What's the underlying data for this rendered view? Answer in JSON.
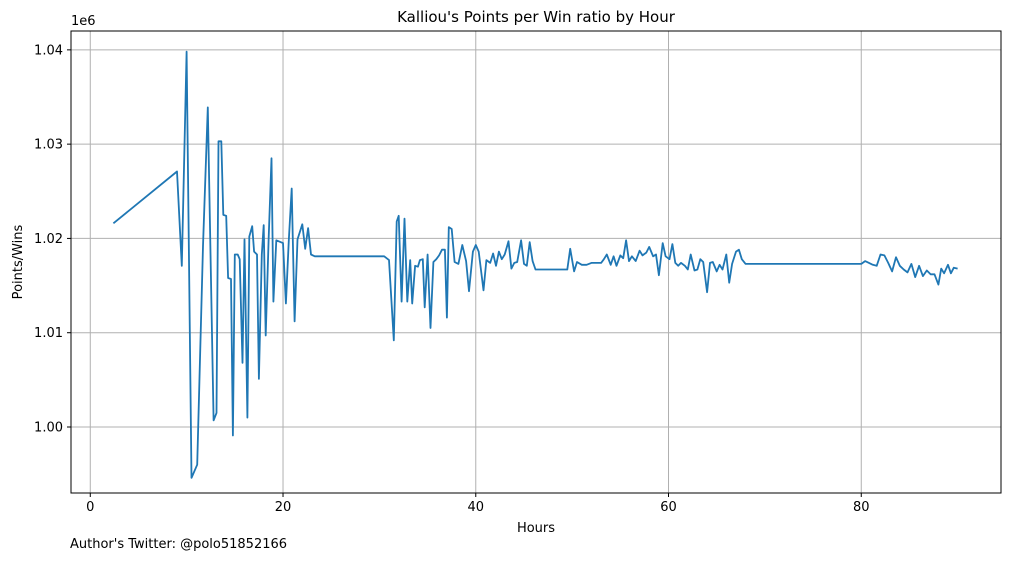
{
  "footer": {
    "note": "Author's Twitter: @polo51852166"
  },
  "colors": {
    "series": "#1f77b4",
    "grid": "#b0b0b0",
    "axis": "#000000"
  },
  "chart_data": {
    "type": "line",
    "title": "Kalliou's Points per Win ratio by Hour",
    "xlabel": "Hours",
    "ylabel": "Points/Wins",
    "y_multiplier_label": "1e6",
    "xlim": [
      -2,
      94.5
    ],
    "ylim": [
      0.993,
      1.042
    ],
    "xticks": [
      0,
      20,
      40,
      60,
      80
    ],
    "yticks": [
      1.0,
      1.01,
      1.02,
      1.03,
      1.04
    ],
    "ytick_labels": [
      "1.00",
      "1.01",
      "1.02",
      "1.03",
      "1.04"
    ],
    "grid": true,
    "series": [
      {
        "points": [
          [
            2.4,
            1.0216
          ],
          [
            9.0,
            1.0271
          ],
          [
            9.5,
            1.0171
          ],
          [
            10.0,
            1.0398
          ],
          [
            10.5,
            0.9946
          ],
          [
            11.1,
            0.996
          ],
          [
            11.7,
            1.0192
          ],
          [
            12.2,
            1.0339
          ],
          [
            12.8,
            1.0007
          ],
          [
            13.1,
            1.0015
          ],
          [
            13.3,
            1.0303
          ],
          [
            13.6,
            1.0303
          ],
          [
            13.8,
            1.0225
          ],
          [
            14.1,
            1.0224
          ],
          [
            14.3,
            1.0158
          ],
          [
            14.6,
            1.0157
          ],
          [
            14.8,
            0.9991
          ],
          [
            15.0,
            1.0183
          ],
          [
            15.3,
            1.0183
          ],
          [
            15.5,
            1.0178
          ],
          [
            15.8,
            1.0068
          ],
          [
            16.0,
            1.0199
          ],
          [
            16.3,
            1.001
          ],
          [
            16.5,
            1.0202
          ],
          [
            16.8,
            1.0213
          ],
          [
            17.0,
            1.0186
          ],
          [
            17.3,
            1.0183
          ],
          [
            17.5,
            1.0051
          ],
          [
            17.8,
            1.0183
          ],
          [
            18.0,
            1.0214
          ],
          [
            18.2,
            1.0097
          ],
          [
            18.5,
            1.0198
          ],
          [
            18.8,
            1.0285
          ],
          [
            19.0,
            1.0133
          ],
          [
            19.3,
            1.0198
          ],
          [
            20.0,
            1.0195
          ],
          [
            20.3,
            1.0131
          ],
          [
            20.6,
            1.0198
          ],
          [
            20.9,
            1.0253
          ],
          [
            21.2,
            1.0112
          ],
          [
            21.5,
            1.0199
          ],
          [
            22.0,
            1.0215
          ],
          [
            22.3,
            1.0189
          ],
          [
            22.6,
            1.0211
          ],
          [
            22.9,
            1.0183
          ],
          [
            23.3,
            1.0181
          ],
          [
            30.5,
            1.0181
          ],
          [
            31.0,
            1.0177
          ],
          [
            31.5,
            1.0092
          ],
          [
            31.8,
            1.0218
          ],
          [
            32.0,
            1.0224
          ],
          [
            32.3,
            1.0133
          ],
          [
            32.6,
            1.0221
          ],
          [
            32.9,
            1.0133
          ],
          [
            33.2,
            1.0177
          ],
          [
            33.4,
            1.0131
          ],
          [
            33.7,
            1.0171
          ],
          [
            34.0,
            1.017
          ],
          [
            34.2,
            1.0177
          ],
          [
            34.5,
            1.0178
          ],
          [
            34.7,
            1.0127
          ],
          [
            35.0,
            1.0183
          ],
          [
            35.3,
            1.0105
          ],
          [
            35.6,
            1.0175
          ],
          [
            35.9,
            1.0178
          ],
          [
            36.2,
            1.0182
          ],
          [
            36.5,
            1.0188
          ],
          [
            36.8,
            1.0188
          ],
          [
            37.0,
            1.0116
          ],
          [
            37.2,
            1.0212
          ],
          [
            37.5,
            1.021
          ],
          [
            37.8,
            1.0175
          ],
          [
            38.2,
            1.0173
          ],
          [
            38.6,
            1.0193
          ],
          [
            39.0,
            1.0176
          ],
          [
            39.3,
            1.0144
          ],
          [
            39.7,
            1.0186
          ],
          [
            40.0,
            1.0193
          ],
          [
            40.3,
            1.0186
          ],
          [
            40.8,
            1.0145
          ],
          [
            41.1,
            1.0177
          ],
          [
            41.5,
            1.0174
          ],
          [
            41.8,
            1.0184
          ],
          [
            42.1,
            1.0171
          ],
          [
            42.4,
            1.0186
          ],
          [
            42.7,
            1.0178
          ],
          [
            43.0,
            1.0183
          ],
          [
            43.4,
            1.0197
          ],
          [
            43.7,
            1.0168
          ],
          [
            44.0,
            1.0174
          ],
          [
            44.3,
            1.0175
          ],
          [
            44.7,
            1.0198
          ],
          [
            45.0,
            1.0173
          ],
          [
            45.3,
            1.0171
          ],
          [
            45.6,
            1.0196
          ],
          [
            45.9,
            1.0176
          ],
          [
            46.2,
            1.0167
          ],
          [
            49.5,
            1.0167
          ],
          [
            49.8,
            1.0189
          ],
          [
            50.2,
            1.0165
          ],
          [
            50.5,
            1.0175
          ],
          [
            51.0,
            1.0172
          ],
          [
            51.5,
            1.0172
          ],
          [
            52.0,
            1.0174
          ],
          [
            52.5,
            1.0174
          ],
          [
            53.0,
            1.0174
          ],
          [
            53.3,
            1.0178
          ],
          [
            53.6,
            1.0183
          ],
          [
            54.0,
            1.0172
          ],
          [
            54.3,
            1.0181
          ],
          [
            54.6,
            1.0171
          ],
          [
            55.0,
            1.0182
          ],
          [
            55.3,
            1.0179
          ],
          [
            55.6,
            1.0198
          ],
          [
            55.9,
            1.0176
          ],
          [
            56.2,
            1.0181
          ],
          [
            56.6,
            1.0176
          ],
          [
            57.0,
            1.0187
          ],
          [
            57.3,
            1.0182
          ],
          [
            57.7,
            1.0185
          ],
          [
            58.0,
            1.0191
          ],
          [
            58.4,
            1.0181
          ],
          [
            58.7,
            1.0183
          ],
          [
            59.0,
            1.0161
          ],
          [
            59.4,
            1.0195
          ],
          [
            59.7,
            1.0181
          ],
          [
            60.1,
            1.0178
          ],
          [
            60.4,
            1.0194
          ],
          [
            60.7,
            1.0174
          ],
          [
            61.0,
            1.0171
          ],
          [
            61.3,
            1.0174
          ],
          [
            61.7,
            1.0171
          ],
          [
            62.0,
            1.0167
          ],
          [
            62.3,
            1.0183
          ],
          [
            62.7,
            1.0166
          ],
          [
            63.0,
            1.0167
          ],
          [
            63.3,
            1.0178
          ],
          [
            63.6,
            1.0175
          ],
          [
            64.0,
            1.0143
          ],
          [
            64.3,
            1.0174
          ],
          [
            64.6,
            1.0175
          ],
          [
            65.0,
            1.0165
          ],
          [
            65.3,
            1.0172
          ],
          [
            65.6,
            1.0167
          ],
          [
            66.0,
            1.0183
          ],
          [
            66.3,
            1.0153
          ],
          [
            66.6,
            1.0173
          ],
          [
            67.0,
            1.0186
          ],
          [
            67.3,
            1.0188
          ],
          [
            67.6,
            1.0178
          ],
          [
            68.0,
            1.0173
          ],
          [
            80.0,
            1.0173
          ],
          [
            80.4,
            1.0176
          ],
          [
            80.8,
            1.0174
          ],
          [
            81.2,
            1.0172
          ],
          [
            81.6,
            1.0171
          ],
          [
            82.0,
            1.0183
          ],
          [
            82.4,
            1.0182
          ],
          [
            82.8,
            1.0174
          ],
          [
            83.2,
            1.0165
          ],
          [
            83.6,
            1.018
          ],
          [
            84.0,
            1.0171
          ],
          [
            84.4,
            1.0167
          ],
          [
            84.8,
            1.0164
          ],
          [
            85.2,
            1.0173
          ],
          [
            85.6,
            1.0159
          ],
          [
            86.0,
            1.0171
          ],
          [
            86.4,
            1.016
          ],
          [
            86.8,
            1.0166
          ],
          [
            87.2,
            1.0162
          ],
          [
            87.6,
            1.0162
          ],
          [
            88.0,
            1.0151
          ],
          [
            88.3,
            1.0168
          ],
          [
            88.6,
            1.0163
          ],
          [
            89.0,
            1.0172
          ],
          [
            89.3,
            1.0163
          ],
          [
            89.6,
            1.0169
          ],
          [
            90.0,
            1.0168
          ]
        ]
      }
    ]
  }
}
